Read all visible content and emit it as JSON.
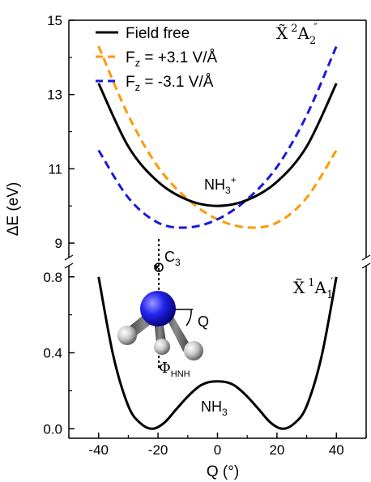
{
  "chart_data": {
    "type": "line",
    "xlabel": "Q (°)",
    "ylabel": "ΔE (eV)",
    "xlim": [
      -50,
      50
    ],
    "x_ticks": [
      "-40",
      "-20",
      "0",
      "20",
      "40"
    ],
    "upper_panel": {
      "ylim": [
        8.5,
        15
      ],
      "y_ticks": [
        "9",
        "11",
        "13",
        "15"
      ],
      "state": {
        "base": "X̃",
        "sup": "2",
        "main": "A",
        "sub": "2",
        "prime": "″"
      },
      "species": {
        "base": "NH",
        "sub": "3",
        "sup": "+"
      },
      "series": [
        {
          "name": "Field free",
          "color": "#000000",
          "dash": false,
          "x": [
            -40,
            -30,
            -20,
            -10,
            0,
            10,
            20,
            30,
            40
          ],
          "y": [
            13.3,
            11.6,
            10.65,
            10.16,
            10.0,
            10.16,
            10.65,
            11.6,
            13.3
          ]
        },
        {
          "name": "Fz = +3.1 V/Å",
          "color": "#FF9900",
          "dash": true,
          "x": [
            -40,
            -30,
            -20,
            -10,
            0,
            10,
            20,
            30,
            40
          ],
          "y": [
            14.3,
            12.44,
            11.05,
            10.18,
            9.64,
            9.42,
            9.55,
            10.22,
            11.5
          ]
        },
        {
          "name": "Fz = -3.1 V/Å",
          "color": "#1A1ADB",
          "dash": true,
          "x": [
            -40,
            -30,
            -20,
            -10,
            0,
            10,
            20,
            30,
            40
          ],
          "y": [
            11.5,
            10.22,
            9.55,
            9.42,
            9.64,
            10.18,
            11.05,
            12.44,
            14.3
          ]
        }
      ]
    },
    "lower_panel": {
      "ylim": [
        -0.05,
        0.88
      ],
      "y_ticks": [
        "0.0",
        "0.4",
        "0.8"
      ],
      "state": {
        "base": "X̃",
        "sup": "1",
        "main": "A",
        "sub": "1",
        "prime": "′"
      },
      "species": {
        "base": "NH",
        "sub": "3"
      },
      "series": [
        {
          "name": "Field free",
          "color": "#000000",
          "dash": false,
          "x": [
            -40,
            -35,
            -30,
            -26,
            -22,
            -18,
            -14,
            -10,
            -6,
            -3,
            0,
            3,
            6,
            10,
            14,
            18,
            22,
            26,
            30,
            35,
            40
          ],
          "y": [
            0.8,
            0.38,
            0.12,
            0.03,
            0.0,
            0.03,
            0.1,
            0.17,
            0.225,
            0.245,
            0.25,
            0.245,
            0.225,
            0.17,
            0.1,
            0.03,
            0.0,
            0.03,
            0.12,
            0.38,
            0.8
          ]
        }
      ]
    },
    "legend": {
      "placement": "top-center",
      "items": [
        {
          "label": "Field free"
        },
        {
          "label_main": "F",
          "label_sub": "z",
          "label_rest": " = +3.1 V/Å"
        },
        {
          "label_main": "F",
          "label_sub": "z",
          "label_rest": " = -3.1 V/Å"
        }
      ]
    },
    "molecule_labels": {
      "axis_main": "C",
      "axis_sub": "3",
      "angle": "Q",
      "phi_main": "Φ",
      "phi_sub": "HNH"
    },
    "colors": {
      "nitrogen": "#1a1aff",
      "hydrogen": "#c8c8c8",
      "bond": "#555555"
    }
  }
}
